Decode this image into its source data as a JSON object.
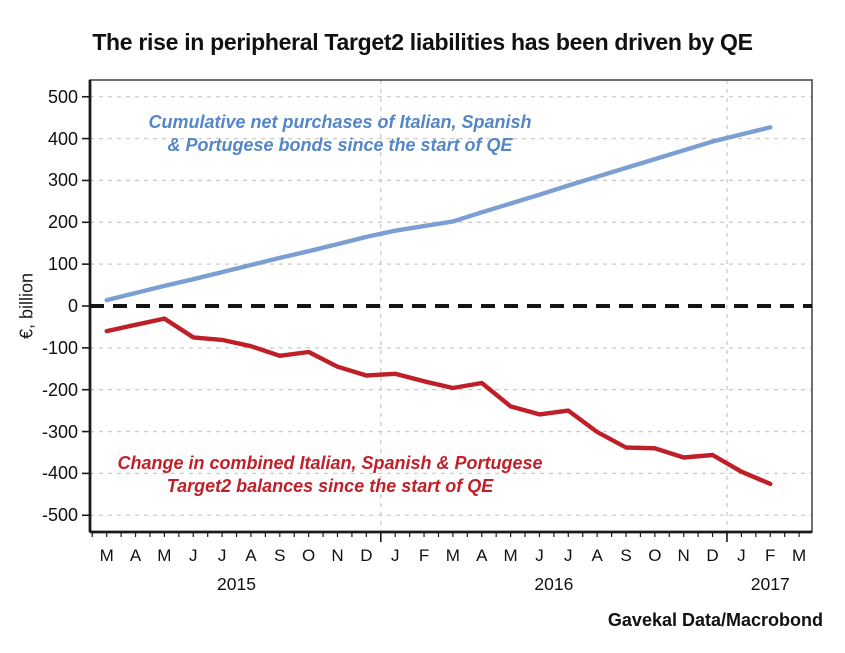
{
  "title": "The rise in peripheral Target2 liabilities has been driven by QE",
  "source": "Gavekal Data/Macrobond",
  "y_axis": {
    "label": "€, billion"
  },
  "x_axis": {
    "month_labels": [
      "M",
      "A",
      "M",
      "J",
      "J",
      "A",
      "S",
      "O",
      "N",
      "D",
      "J",
      "F",
      "M",
      "A",
      "M",
      "J",
      "J",
      "A",
      "S",
      "O",
      "N",
      "D",
      "J",
      "F",
      "M"
    ],
    "year_labels": [
      {
        "text": "2015",
        "month_index": 4.5
      },
      {
        "text": "2016",
        "month_index": 15.5
      },
      {
        "text": "2017",
        "month_index": 23
      }
    ]
  },
  "series_labels": {
    "purchases": {
      "line1": "Cumulative net purchases of Italian, Spanish",
      "line2": "& Portugese bonds since the start of QE",
      "color": "#5586C6"
    },
    "target2": {
      "line1": "Change in combined Italian, Spanish & Portugese",
      "line2": "Target2 balances since the start of QE",
      "color": "#C0202A"
    }
  },
  "colors": {
    "grid": "#CBCBCB",
    "axis": "#1A1A1A",
    "frame": "#404040",
    "zero_line": "#141414",
    "purchases_line": "#7C9FD3",
    "target2_line": "#BF2028"
  },
  "chart_data": {
    "type": "line",
    "title": "The rise in peripheral Target2 liabilities has been driven by QE",
    "ylabel": "€, billion",
    "x_unit": "month",
    "x_months": [
      "2015-03",
      "2015-04",
      "2015-05",
      "2015-06",
      "2015-07",
      "2015-08",
      "2015-09",
      "2015-10",
      "2015-11",
      "2015-12",
      "2016-01",
      "2016-02",
      "2016-03",
      "2016-04",
      "2016-05",
      "2016-06",
      "2016-07",
      "2016-08",
      "2016-09",
      "2016-10",
      "2016-11",
      "2016-12",
      "2017-01",
      "2017-02"
    ],
    "series": [
      {
        "name": "Cumulative net purchases of Italian, Spanish & Portugese bonds since the start of QE",
        "color": "#7C9FD3",
        "values": [
          14,
          31,
          48,
          64,
          81,
          98,
          115,
          131,
          148,
          165,
          180,
          191,
          202,
          224,
          245,
          266,
          288,
          309,
          330,
          351,
          372,
          393,
          410,
          427
        ]
      },
      {
        "name": "Change in combined Italian, Spanish & Portugese Target2 balances since the start of QE",
        "color": "#BF2028",
        "values": [
          -60,
          -45,
          -30,
          -75,
          -81,
          -96,
          -119,
          -110,
          -145,
          -166,
          -162,
          -180,
          -196,
          -184,
          -240,
          -259,
          -250,
          -301,
          -338,
          -340,
          -362,
          -356,
          -396,
          -425
        ]
      }
    ],
    "yticks": [
      500,
      400,
      300,
      200,
      100,
      0,
      -100,
      -200,
      -300,
      -400,
      -500
    ],
    "ylim": [
      -540,
      540
    ],
    "zero_line": "dashed-black",
    "grid": "dashed-gray",
    "legend_position": "annotations-inline"
  }
}
